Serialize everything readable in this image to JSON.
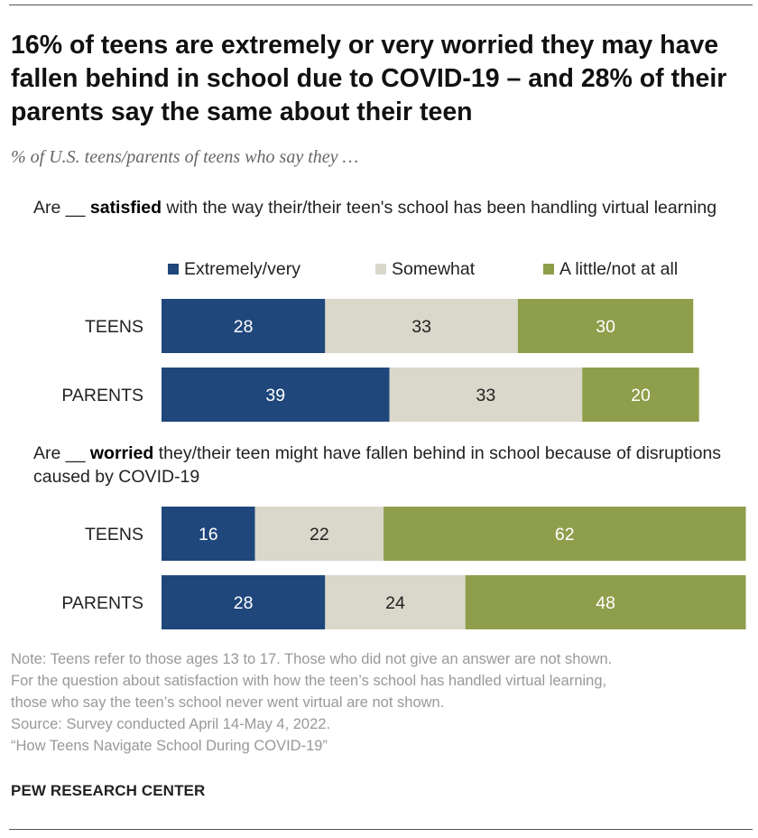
{
  "title": "16% of teens are extremely or very worried they may have fallen behind in school due to COVID-19 – and 28% of their parents say the same about their teen",
  "subtitle": "% of U.S. teens/parents of teens who say they …",
  "legend": [
    {
      "label": "Extremely/very",
      "color": "#1f477b"
    },
    {
      "label": "Somewhat",
      "color": "#dad7cb"
    },
    {
      "label": "A little/not at all",
      "color": "#8f9e4b"
    }
  ],
  "chart_data": [
    {
      "type": "bar",
      "orientation": "horizontal",
      "stacked": true,
      "question": {
        "pre": "Are __ ",
        "bold": "satisfied",
        "post": " with the way their/their teen's school has been handling virtual learning"
      },
      "categories": [
        "TEENS",
        "PARENTS"
      ],
      "series": [
        {
          "name": "Extremely/very",
          "values": [
            28,
            39
          ]
        },
        {
          "name": "Somewhat",
          "values": [
            33,
            33
          ]
        },
        {
          "name": "A little/not at all",
          "values": [
            30,
            20
          ]
        }
      ],
      "xlim": [
        0,
        100
      ],
      "grid": false,
      "legend_position": "top-right"
    },
    {
      "type": "bar",
      "orientation": "horizontal",
      "stacked": true,
      "question": {
        "pre": "Are __ ",
        "bold": "worried",
        "post": " they/their teen might have fallen behind in school because of disruptions caused by COVID-19"
      },
      "categories": [
        "TEENS",
        "PARENTS"
      ],
      "series": [
        {
          "name": "Extremely/very",
          "values": [
            16,
            28
          ]
        },
        {
          "name": "Somewhat",
          "values": [
            22,
            24
          ]
        },
        {
          "name": "A little/not at all",
          "values": [
            62,
            48
          ]
        }
      ],
      "xlim": [
        0,
        100
      ],
      "grid": false
    }
  ],
  "notes": [
    "Note: Teens refer to those ages 13 to 17. Those who did not give an answer are not shown.",
    "For the question about satisfaction with how the teen’s school has handled virtual learning,",
    "those who say the teen’s school never went virtual are not shown.",
    "Source: Survey conducted April 14-May 4, 2022.",
    "“How Teens Navigate School During COVID-19”"
  ],
  "brand": "PEW RESEARCH CENTER"
}
